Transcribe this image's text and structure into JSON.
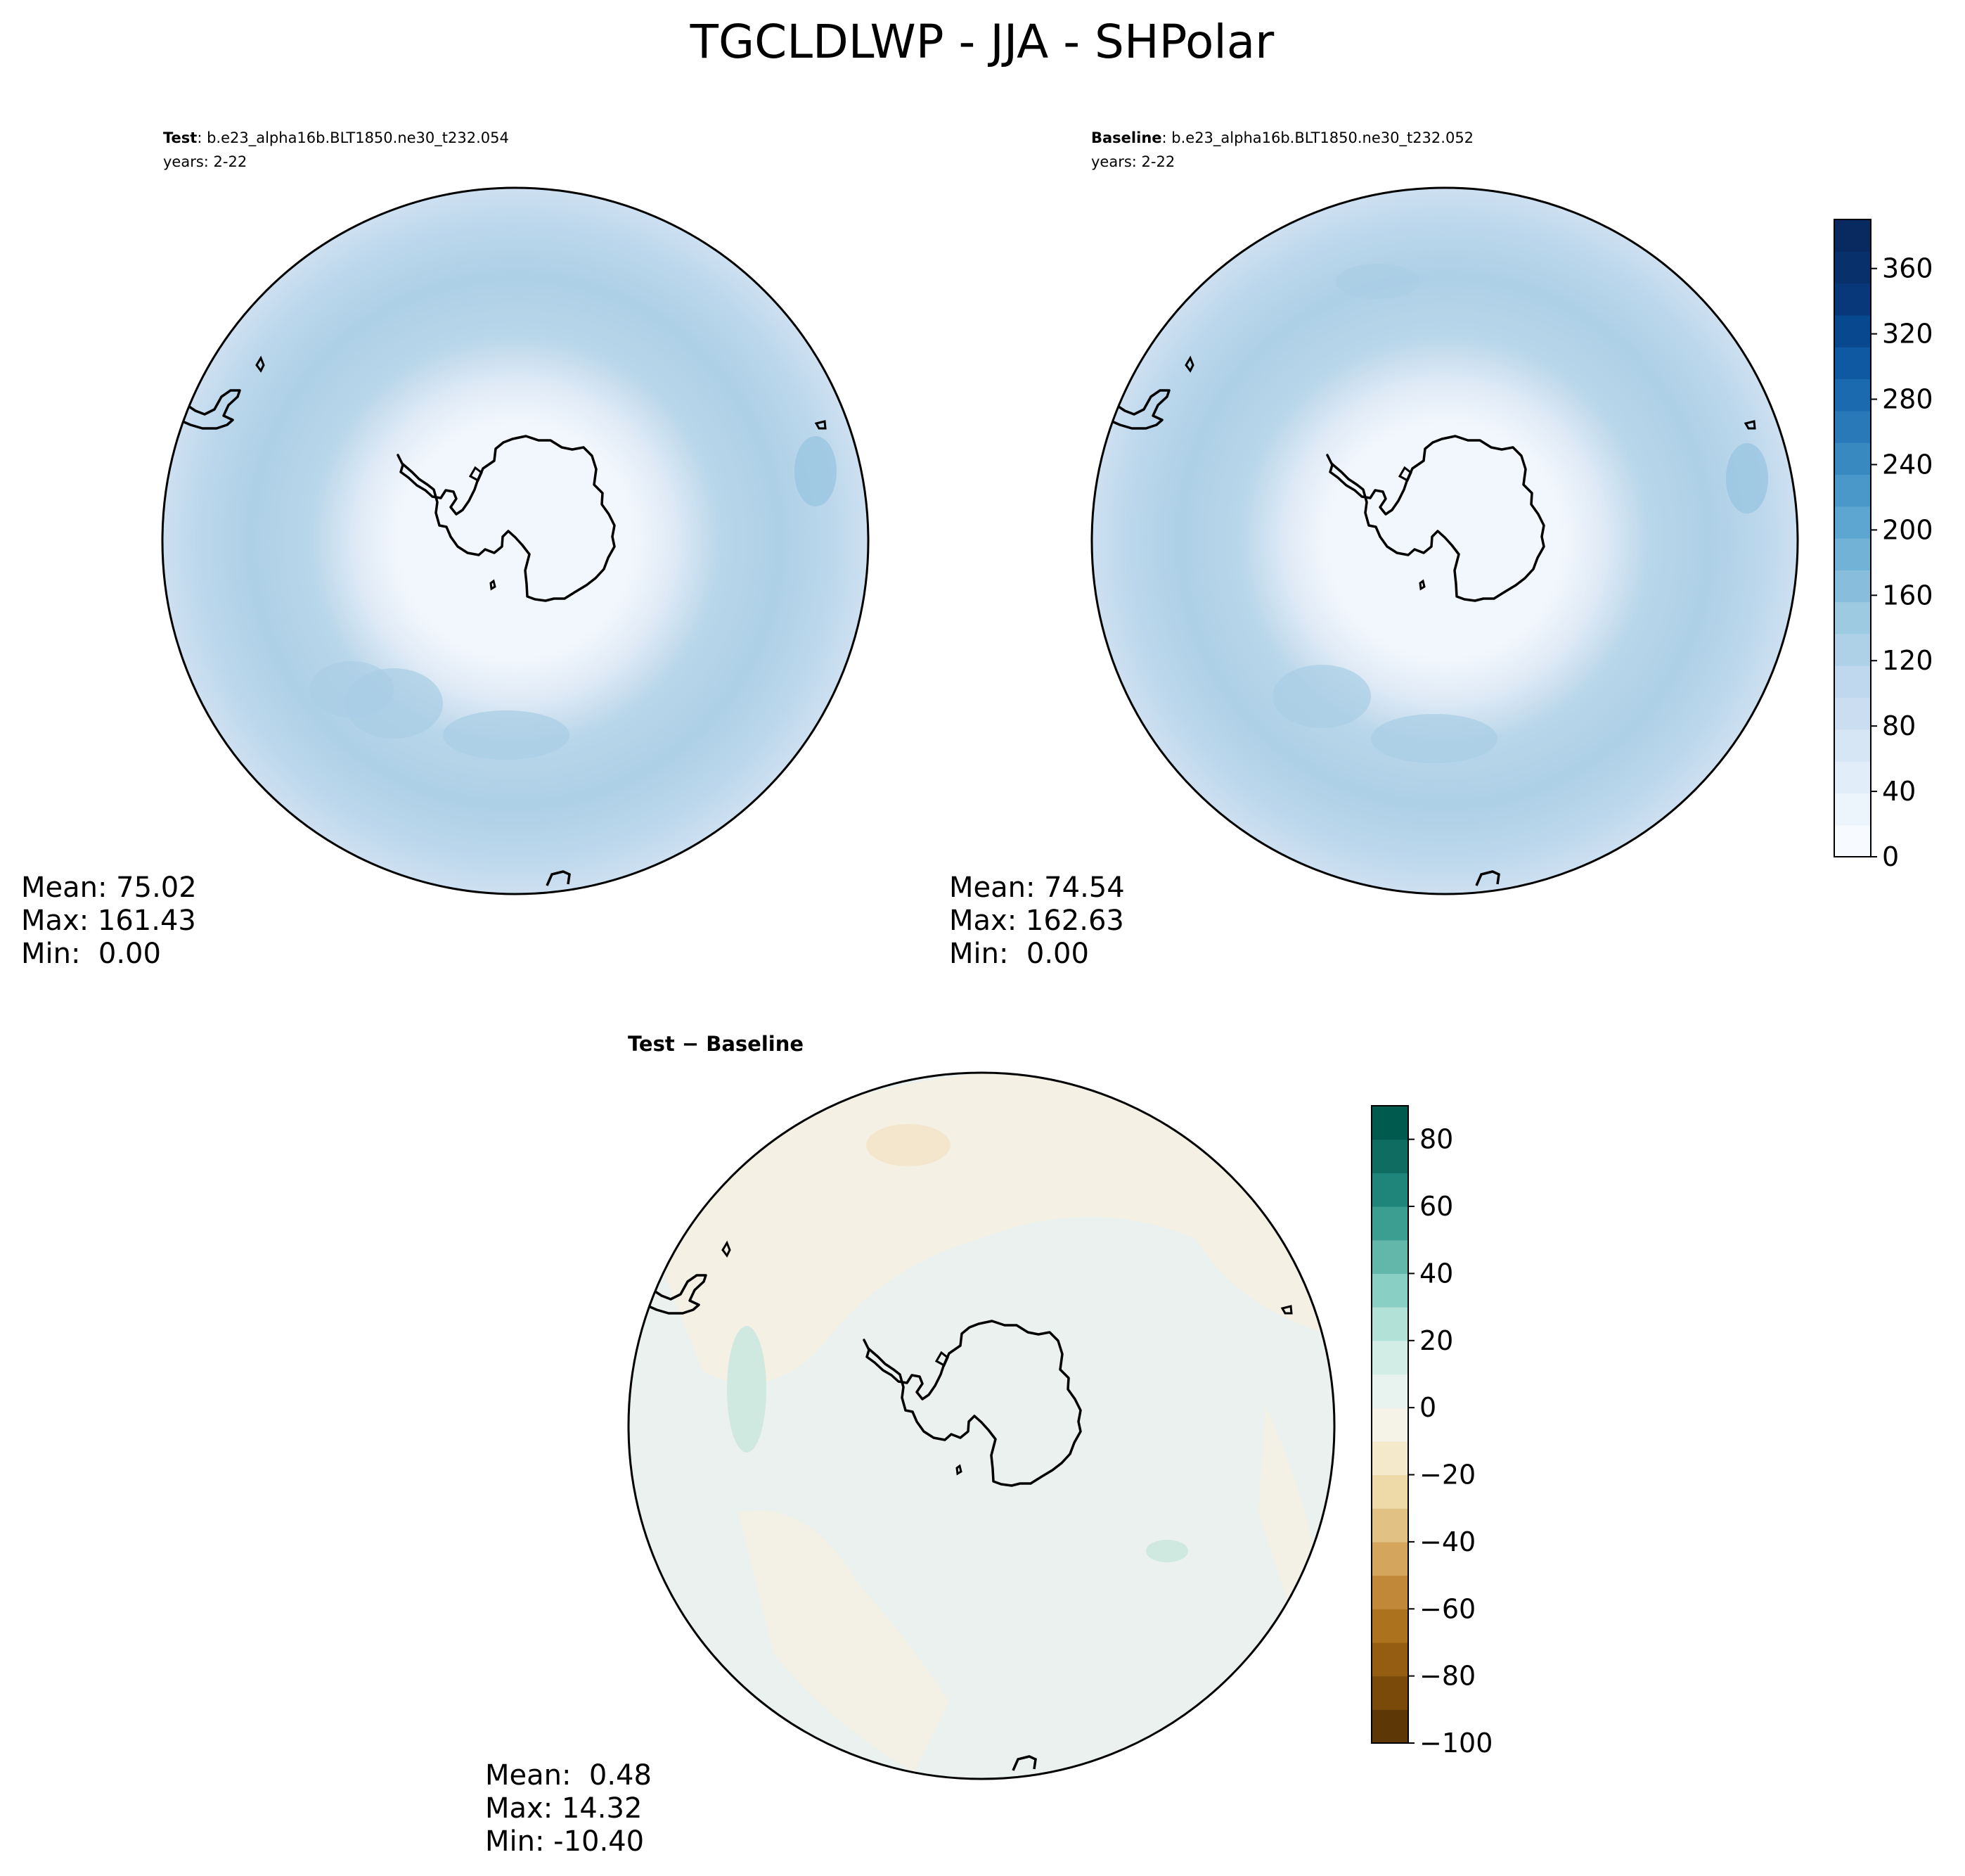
{
  "figure": {
    "title": "TGCLDLWP - JJA - SHPolar"
  },
  "panels": [
    {
      "id": "test",
      "label_bold": "Test",
      "label_rest": ": b.e23_alpha16b.BLT1850.ne30_t232.054",
      "years": "years: 2-22",
      "stats": [
        "Mean: 75.02",
        "Max: 161.43",
        "Min:  0.00"
      ]
    },
    {
      "id": "baseline",
      "label_bold": "Baseline",
      "label_rest": ": b.e23_alpha16b.BLT1850.ne30_t232.052",
      "years": "years: 2-22",
      "stats": [
        "Mean: 74.54",
        "Max: 162.63",
        "Min:  0.00"
      ]
    },
    {
      "id": "diff",
      "label_bold": "Test − Baseline",
      "label_rest": "",
      "years": "",
      "stats": [
        "Mean:  0.48",
        "Max: 14.32",
        "Min: -10.40"
      ]
    }
  ],
  "chart_data": [
    {
      "type": "heatmap",
      "projection": "south-polar-stereographic",
      "panel": "Test",
      "field": "TGCLDLWP",
      "mean": 75.02,
      "max": 161.43,
      "min": 0.0,
      "colorbar": "shared-with-baseline"
    },
    {
      "type": "heatmap",
      "projection": "south-polar-stereographic",
      "panel": "Baseline",
      "field": "TGCLDLWP",
      "mean": 74.54,
      "max": 162.63,
      "min": 0.0,
      "colorbar": {
        "colormap": "Blues",
        "range": [
          0,
          390
        ],
        "levels_step": 20,
        "ticks": [
          0,
          40,
          80,
          120,
          160,
          200,
          240,
          280,
          320,
          360
        ],
        "tick_labels": [
          "0",
          "40",
          "80",
          "120",
          "160",
          "200",
          "240",
          "280",
          "320",
          "360"
        ],
        "colors": [
          "#f7fbff",
          "#ecf4fc",
          "#e1edf8",
          "#d6e6f4",
          "#cbdef1",
          "#bfd8ed",
          "#afd1e7",
          "#9ecae1",
          "#88bedc",
          "#72b2d7",
          "#5da6d2",
          "#4a98c9",
          "#3989c1",
          "#2979b9",
          "#1b69af",
          "#0e59a2",
          "#08488e",
          "#08387a",
          "#08306b",
          "#082a60"
        ]
      }
    },
    {
      "type": "heatmap",
      "projection": "south-polar-stereographic",
      "panel": "Test − Baseline",
      "field": "TGCLDLWP difference",
      "mean": 0.48,
      "max": 14.32,
      "min": -10.4,
      "colorbar": {
        "colormap": "BrBG",
        "range": [
          -100,
          90
        ],
        "levels_step": 10,
        "ticks": [
          -100,
          -80,
          -60,
          -40,
          -20,
          0,
          20,
          40,
          60,
          80
        ],
        "tick_labels": [
          "−100",
          "−80",
          "−60",
          "−40",
          "−20",
          "0",
          "20",
          "40",
          "60",
          "80"
        ],
        "colors": [
          "#5d3706",
          "#7a4a0b",
          "#955d12",
          "#ad721d",
          "#c2883a",
          "#d4a55d",
          "#e2c284",
          "#eed9a9",
          "#f4e9cb",
          "#f5f2e8",
          "#e8f2ef",
          "#d2ede6",
          "#b2e1d7",
          "#8acfc3",
          "#62b6aa",
          "#3c9d91",
          "#1f8479",
          "#0f6c61",
          "#015a4e"
        ]
      }
    }
  ]
}
